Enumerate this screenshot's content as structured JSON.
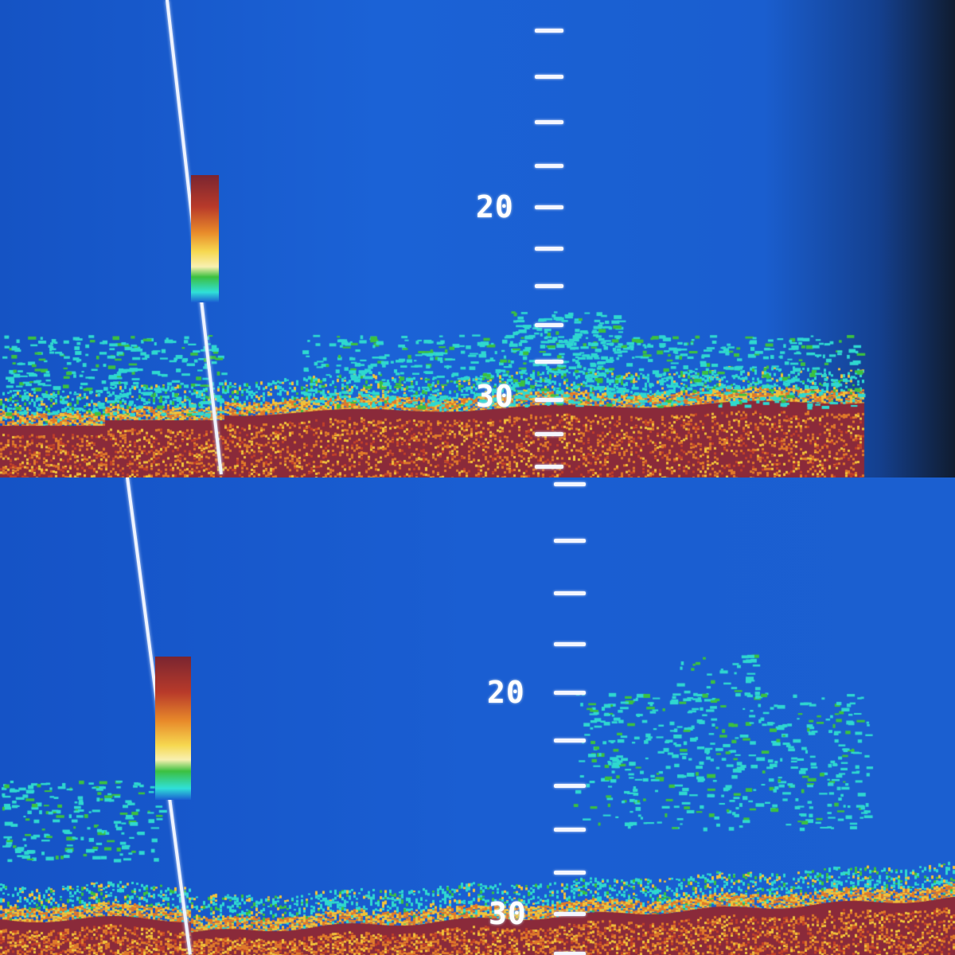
{
  "panels": [
    {
      "id": "top",
      "depth_labels": [
        "20",
        "30"
      ]
    },
    {
      "id": "bottom",
      "depth_labels": [
        "20",
        "30"
      ]
    }
  ],
  "colors": {
    "water": "#1a5ed2",
    "bottom_strong": "#8a2a3a",
    "bottom_mid": "#e07a2a",
    "bottom_weak": "#f2c23a",
    "returns_weak": "#2fd8d0",
    "scale_marks": "#f4f6ff"
  },
  "color_scale": [
    "#8a2a2a",
    "#c03a2a",
    "#e8842a",
    "#f4d040",
    "#f6f0a0",
    "#3cc040",
    "#30e0d8"
  ]
}
